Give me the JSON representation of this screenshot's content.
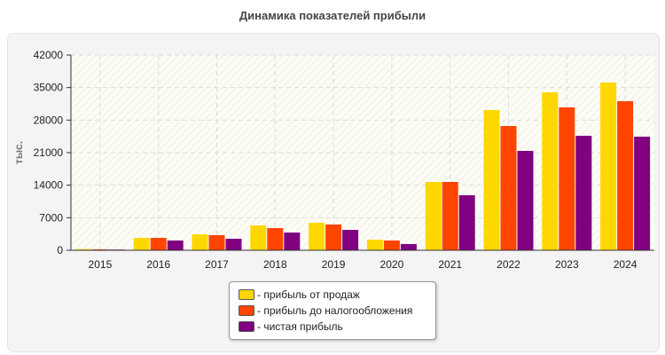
{
  "chart_data": {
    "type": "bar",
    "title": "Динамика показателей прибыли",
    "ylabel": "тыс.",
    "xlabel": "",
    "ylim": [
      0,
      42000
    ],
    "yticks": [
      0,
      7000,
      14000,
      21000,
      28000,
      35000,
      42000
    ],
    "grid": true,
    "legend_position": "bottom",
    "categories": [
      "2015",
      "2016",
      "2017",
      "2018",
      "2019",
      "2020",
      "2021",
      "2022",
      "2023",
      "2024"
    ],
    "series": [
      {
        "name": "- прибыль от продаж",
        "color": "#FFD700",
        "values": [
          250,
          2670,
          3440,
          5350,
          5920,
          2290,
          14700,
          30160,
          33980,
          36080
        ]
      },
      {
        "name": "- прибыль до налогообложения",
        "color": "#FF4500",
        "values": [
          200,
          2670,
          3250,
          4770,
          5540,
          2100,
          14700,
          26730,
          30740,
          32070
        ]
      },
      {
        "name": "- чистая прибыль",
        "color": "#800080",
        "values": [
          150,
          2100,
          2480,
          3820,
          4390,
          1340,
          11840,
          21380,
          24630,
          24440
        ]
      }
    ]
  }
}
